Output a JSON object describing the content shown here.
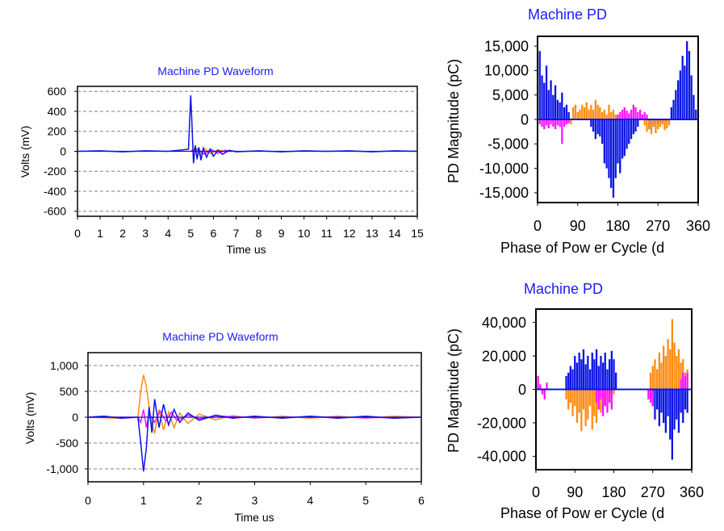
{
  "colors": {
    "blue": "#0a14e6",
    "orange": "#ff8c14",
    "magenta": "#ff14ff",
    "grid": "#808080",
    "title": "#1a1aff"
  },
  "chart_data": [
    {
      "id": "wave1",
      "type": "line",
      "title": "Machine PD Waveform",
      "xlabel": "Time us",
      "ylabel": "Volts (mV)",
      "xlim": [
        0,
        15
      ],
      "ylim": [
        -650,
        650
      ],
      "xticks": [
        0,
        1,
        2,
        3,
        4,
        5,
        6,
        7,
        8,
        9,
        10,
        11,
        12,
        13,
        14,
        15
      ],
      "yticks": [
        600,
        400,
        200,
        0,
        -200,
        -400,
        -600
      ],
      "ytick_labels": [
        "600",
        "400",
        "200",
        "0",
        "-200",
        "-400",
        "-600"
      ],
      "grid": true,
      "series": [
        {
          "color": "blue",
          "x": [
            0,
            1,
            2,
            3,
            4,
            4.9,
            5.0,
            5.05,
            5.12,
            5.2,
            5.28,
            5.36,
            5.45,
            5.55,
            5.7,
            5.85,
            6.0,
            6.2,
            6.4,
            6.7,
            7,
            8,
            9,
            10,
            11,
            12,
            13,
            14,
            15
          ],
          "y": [
            0,
            5,
            -5,
            5,
            0,
            20,
            560,
            300,
            -120,
            60,
            -80,
            40,
            -90,
            30,
            -60,
            20,
            -50,
            10,
            -30,
            10,
            -5,
            5,
            -5,
            5,
            0,
            5,
            -5,
            5,
            0
          ]
        },
        {
          "color": "orange",
          "x": [
            5.0,
            5.2,
            5.4,
            5.6,
            5.9,
            6.2,
            6.6
          ],
          "y": [
            0,
            40,
            -40,
            30,
            -25,
            15,
            -5
          ]
        },
        {
          "color": "magenta",
          "x": [
            5.0,
            5.3,
            5.6,
            5.9,
            6.2,
            6.5,
            7.0
          ],
          "y": [
            0,
            25,
            -30,
            20,
            -20,
            10,
            0
          ]
        }
      ]
    },
    {
      "id": "phase1",
      "type": "bar",
      "title": "Machine PD",
      "xlabel": "Phase of Pow er Cycle (d",
      "ylabel": "PD Magnitude (pC)",
      "xlim": [
        0,
        360
      ],
      "ylim": [
        -17000,
        17000
      ],
      "xticks": [
        0,
        90,
        180,
        270,
        360
      ],
      "xtick_labels": [
        "0",
        "90",
        "180",
        "270",
        "360"
      ],
      "yticks": [
        15000,
        10000,
        5000,
        0,
        -5000,
        -10000,
        -15000
      ],
      "ytick_labels": [
        "15,000",
        "10,000",
        "5,000",
        "0",
        "-5,000",
        "-10,000",
        "-15,000"
      ],
      "series": [
        {
          "color": "blue",
          "name": "",
          "x": [
            5,
            10,
            15,
            20,
            25,
            30,
            35,
            40,
            45,
            50,
            55,
            60,
            65,
            70,
            120,
            125,
            130,
            135,
            140,
            145,
            150,
            155,
            160,
            165,
            170,
            175,
            180,
            185,
            190,
            195,
            200,
            205,
            210,
            215,
            220,
            225,
            250,
            255,
            260,
            265,
            270,
            275,
            280,
            285,
            290,
            295,
            300,
            305,
            310,
            315,
            320,
            325,
            330,
            335,
            340,
            345,
            350,
            355
          ],
          "y": [
            14000,
            9000,
            7500,
            11000,
            6000,
            8000,
            5000,
            7000,
            4000,
            3500,
            5500,
            2500,
            3000,
            1500,
            -1500,
            -2500,
            -4000,
            -3000,
            -3500,
            -5000,
            -9000,
            -10000,
            -12000,
            -14000,
            -16000,
            -12000,
            -9000,
            -11000,
            -8000,
            -7500,
            -6000,
            -5000,
            -4000,
            -3000,
            -2500,
            -1500,
            -1000,
            -2000,
            -1500,
            -800,
            -1000,
            -500,
            -800,
            -500,
            -300,
            -200,
            2500,
            4000,
            6000,
            8000,
            10000,
            13000,
            11000,
            16000,
            14000,
            9000,
            5000,
            2000
          ]
        },
        {
          "color": "orange",
          "name": "",
          "x": [
            75,
            80,
            85,
            90,
            95,
            100,
            105,
            110,
            115,
            120,
            125,
            130,
            135,
            140,
            145,
            150,
            155,
            160,
            165,
            170,
            175,
            180,
            240,
            245,
            250,
            255,
            260,
            265,
            270,
            275,
            280,
            285,
            290,
            295
          ],
          "y": [
            -1000,
            2500,
            3000,
            1500,
            2000,
            3000,
            2500,
            3500,
            2000,
            3000,
            2000,
            4000,
            3000,
            2500,
            1500,
            2000,
            1000,
            3000,
            1500,
            2000,
            1000,
            500,
            -1200,
            -2500,
            -2000,
            -3000,
            -1500,
            -2800,
            -2000,
            -1500,
            -1000,
            -2200,
            -1800,
            -1200
          ]
        },
        {
          "color": "magenta",
          "name": "",
          "x": [
            5,
            10,
            15,
            20,
            25,
            30,
            35,
            40,
            45,
            50,
            55,
            60,
            65,
            70,
            180,
            185,
            190,
            195,
            200,
            205,
            210,
            215,
            220,
            225,
            230,
            235,
            240,
            245
          ],
          "y": [
            -1000,
            -1500,
            -2000,
            -1200,
            -1800,
            -1000,
            -1500,
            -2000,
            -1200,
            -1500,
            -5000,
            -1500,
            -1000,
            -800,
            1000,
            1500,
            2000,
            2500,
            1800,
            1200,
            2000,
            3000,
            2500,
            1500,
            2000,
            1000,
            1500,
            1000
          ]
        }
      ]
    },
    {
      "id": "wave2",
      "type": "line",
      "title": "Machine PD Waveform",
      "xlabel": "Time us",
      "ylabel": "Volts (mV)",
      "xlim": [
        0,
        6
      ],
      "ylim": [
        -1250,
        1250
      ],
      "xticks": [
        0,
        1,
        2,
        3,
        4,
        5,
        6
      ],
      "yticks": [
        1000,
        500,
        0,
        -500,
        -1000
      ],
      "ytick_labels": [
        "1,000",
        "500",
        "0",
        "-500",
        "-1,000"
      ],
      "grid": true,
      "series": [
        {
          "color": "blue",
          "x": [
            0,
            0.3,
            0.6,
            0.9,
            0.95,
            1.0,
            1.05,
            1.1,
            1.15,
            1.2,
            1.28,
            1.36,
            1.45,
            1.55,
            1.65,
            1.8,
            2.0,
            2.3,
            2.6,
            3,
            3.5,
            4,
            4.5,
            5,
            5.5,
            6
          ],
          "y": [
            0,
            20,
            -20,
            0,
            -500,
            -1050,
            -600,
            200,
            -300,
            350,
            -200,
            250,
            -150,
            150,
            -100,
            80,
            -60,
            40,
            -20,
            20,
            -20,
            20,
            -20,
            20,
            -20,
            0
          ]
        },
        {
          "color": "orange",
          "x": [
            0,
            0.5,
            0.9,
            0.95,
            1.0,
            1.05,
            1.1,
            1.15,
            1.2,
            1.28,
            1.36,
            1.45,
            1.55,
            1.65,
            1.8,
            2.0,
            2.3,
            2.6,
            3,
            3.5,
            4,
            4.5,
            5,
            5.5,
            6
          ],
          "y": [
            0,
            -20,
            0,
            500,
            820,
            600,
            200,
            -150,
            -300,
            150,
            -250,
            100,
            -200,
            80,
            -120,
            60,
            -50,
            30,
            -20,
            20,
            -20,
            20,
            -20,
            20,
            0
          ]
        },
        {
          "color": "magenta",
          "x": [
            0,
            0.9,
            0.95,
            1.0,
            1.05,
            1.1,
            1.2,
            1.3,
            1.4,
            1.5,
            1.6,
            1.8,
            2.0,
            2.4,
            3,
            4,
            5,
            6
          ],
          "y": [
            0,
            0,
            -100,
            150,
            -200,
            80,
            -100,
            120,
            -80,
            100,
            -60,
            40,
            -30,
            20,
            -10,
            10,
            -10,
            0
          ]
        }
      ]
    },
    {
      "id": "phase2",
      "type": "bar",
      "title": "Machine PD",
      "xlabel": "Phase of Pow er Cycle (d",
      "ylabel": "PD Magnitude (pC)",
      "xlim": [
        0,
        360
      ],
      "ylim": [
        -48000,
        48000
      ],
      "xticks": [
        0,
        90,
        180,
        270,
        360
      ],
      "xtick_labels": [
        "0",
        "90",
        "180",
        "270",
        "360"
      ],
      "yticks": [
        40000,
        20000,
        0,
        -20000,
        -40000
      ],
      "ytick_labels": [
        "40,000",
        "20,000",
        "0",
        "-20,000",
        "-40,000"
      ],
      "series": [
        {
          "color": "blue",
          "name": "",
          "x": [
            70,
            75,
            80,
            85,
            90,
            95,
            100,
            105,
            110,
            115,
            120,
            125,
            130,
            135,
            140,
            145,
            150,
            155,
            160,
            165,
            170,
            175,
            180,
            185,
            265,
            270,
            275,
            280,
            285,
            290,
            295,
            300,
            305,
            310,
            315,
            320,
            325,
            330,
            335,
            340,
            345,
            350
          ],
          "y": [
            8000,
            10000,
            14000,
            12000,
            20000,
            16000,
            22000,
            18000,
            24000,
            15000,
            20000,
            12000,
            22000,
            18000,
            24000,
            14000,
            20000,
            16000,
            22000,
            12000,
            18000,
            23000,
            18000,
            10000,
            -4000,
            -10000,
            -18000,
            -12000,
            -22000,
            -14000,
            -20000,
            -26000,
            -16000,
            -30000,
            -42000,
            -24000,
            -18000,
            -26000,
            -14000,
            -20000,
            -12000,
            -14000
          ]
        },
        {
          "color": "orange",
          "name": "",
          "x": [
            70,
            75,
            80,
            85,
            90,
            95,
            100,
            105,
            110,
            115,
            120,
            125,
            130,
            135,
            140,
            145,
            150,
            155,
            160,
            165,
            170,
            175,
            180,
            265,
            270,
            275,
            280,
            285,
            290,
            295,
            300,
            305,
            310,
            315,
            320,
            325,
            330,
            335,
            340,
            345,
            350
          ],
          "y": [
            -6000,
            -12000,
            -8000,
            -16000,
            -10000,
            -20000,
            -14000,
            -25000,
            -12000,
            -22000,
            -18000,
            -10000,
            -24000,
            -16000,
            -20000,
            -12000,
            -14000,
            -8000,
            -10000,
            -6000,
            -8000,
            -4000,
            -3000,
            10000,
            14000,
            18000,
            12000,
            22000,
            16000,
            26000,
            20000,
            30000,
            24000,
            42000,
            28000,
            20000,
            24000,
            16000,
            18000,
            10000,
            12000
          ]
        },
        {
          "color": "magenta",
          "name": "",
          "x": [
            5,
            10,
            15,
            20,
            25,
            140,
            145,
            150,
            155,
            160,
            165,
            170,
            175,
            260,
            265,
            270,
            335,
            340,
            345,
            350
          ],
          "y": [
            8000,
            3000,
            -3000,
            -6000,
            4000,
            -8000,
            -12000,
            -6000,
            -16000,
            -10000,
            -14000,
            -8000,
            -12000,
            -6000,
            -8000,
            -10000,
            6000,
            10000,
            8000,
            10000
          ]
        }
      ]
    }
  ]
}
